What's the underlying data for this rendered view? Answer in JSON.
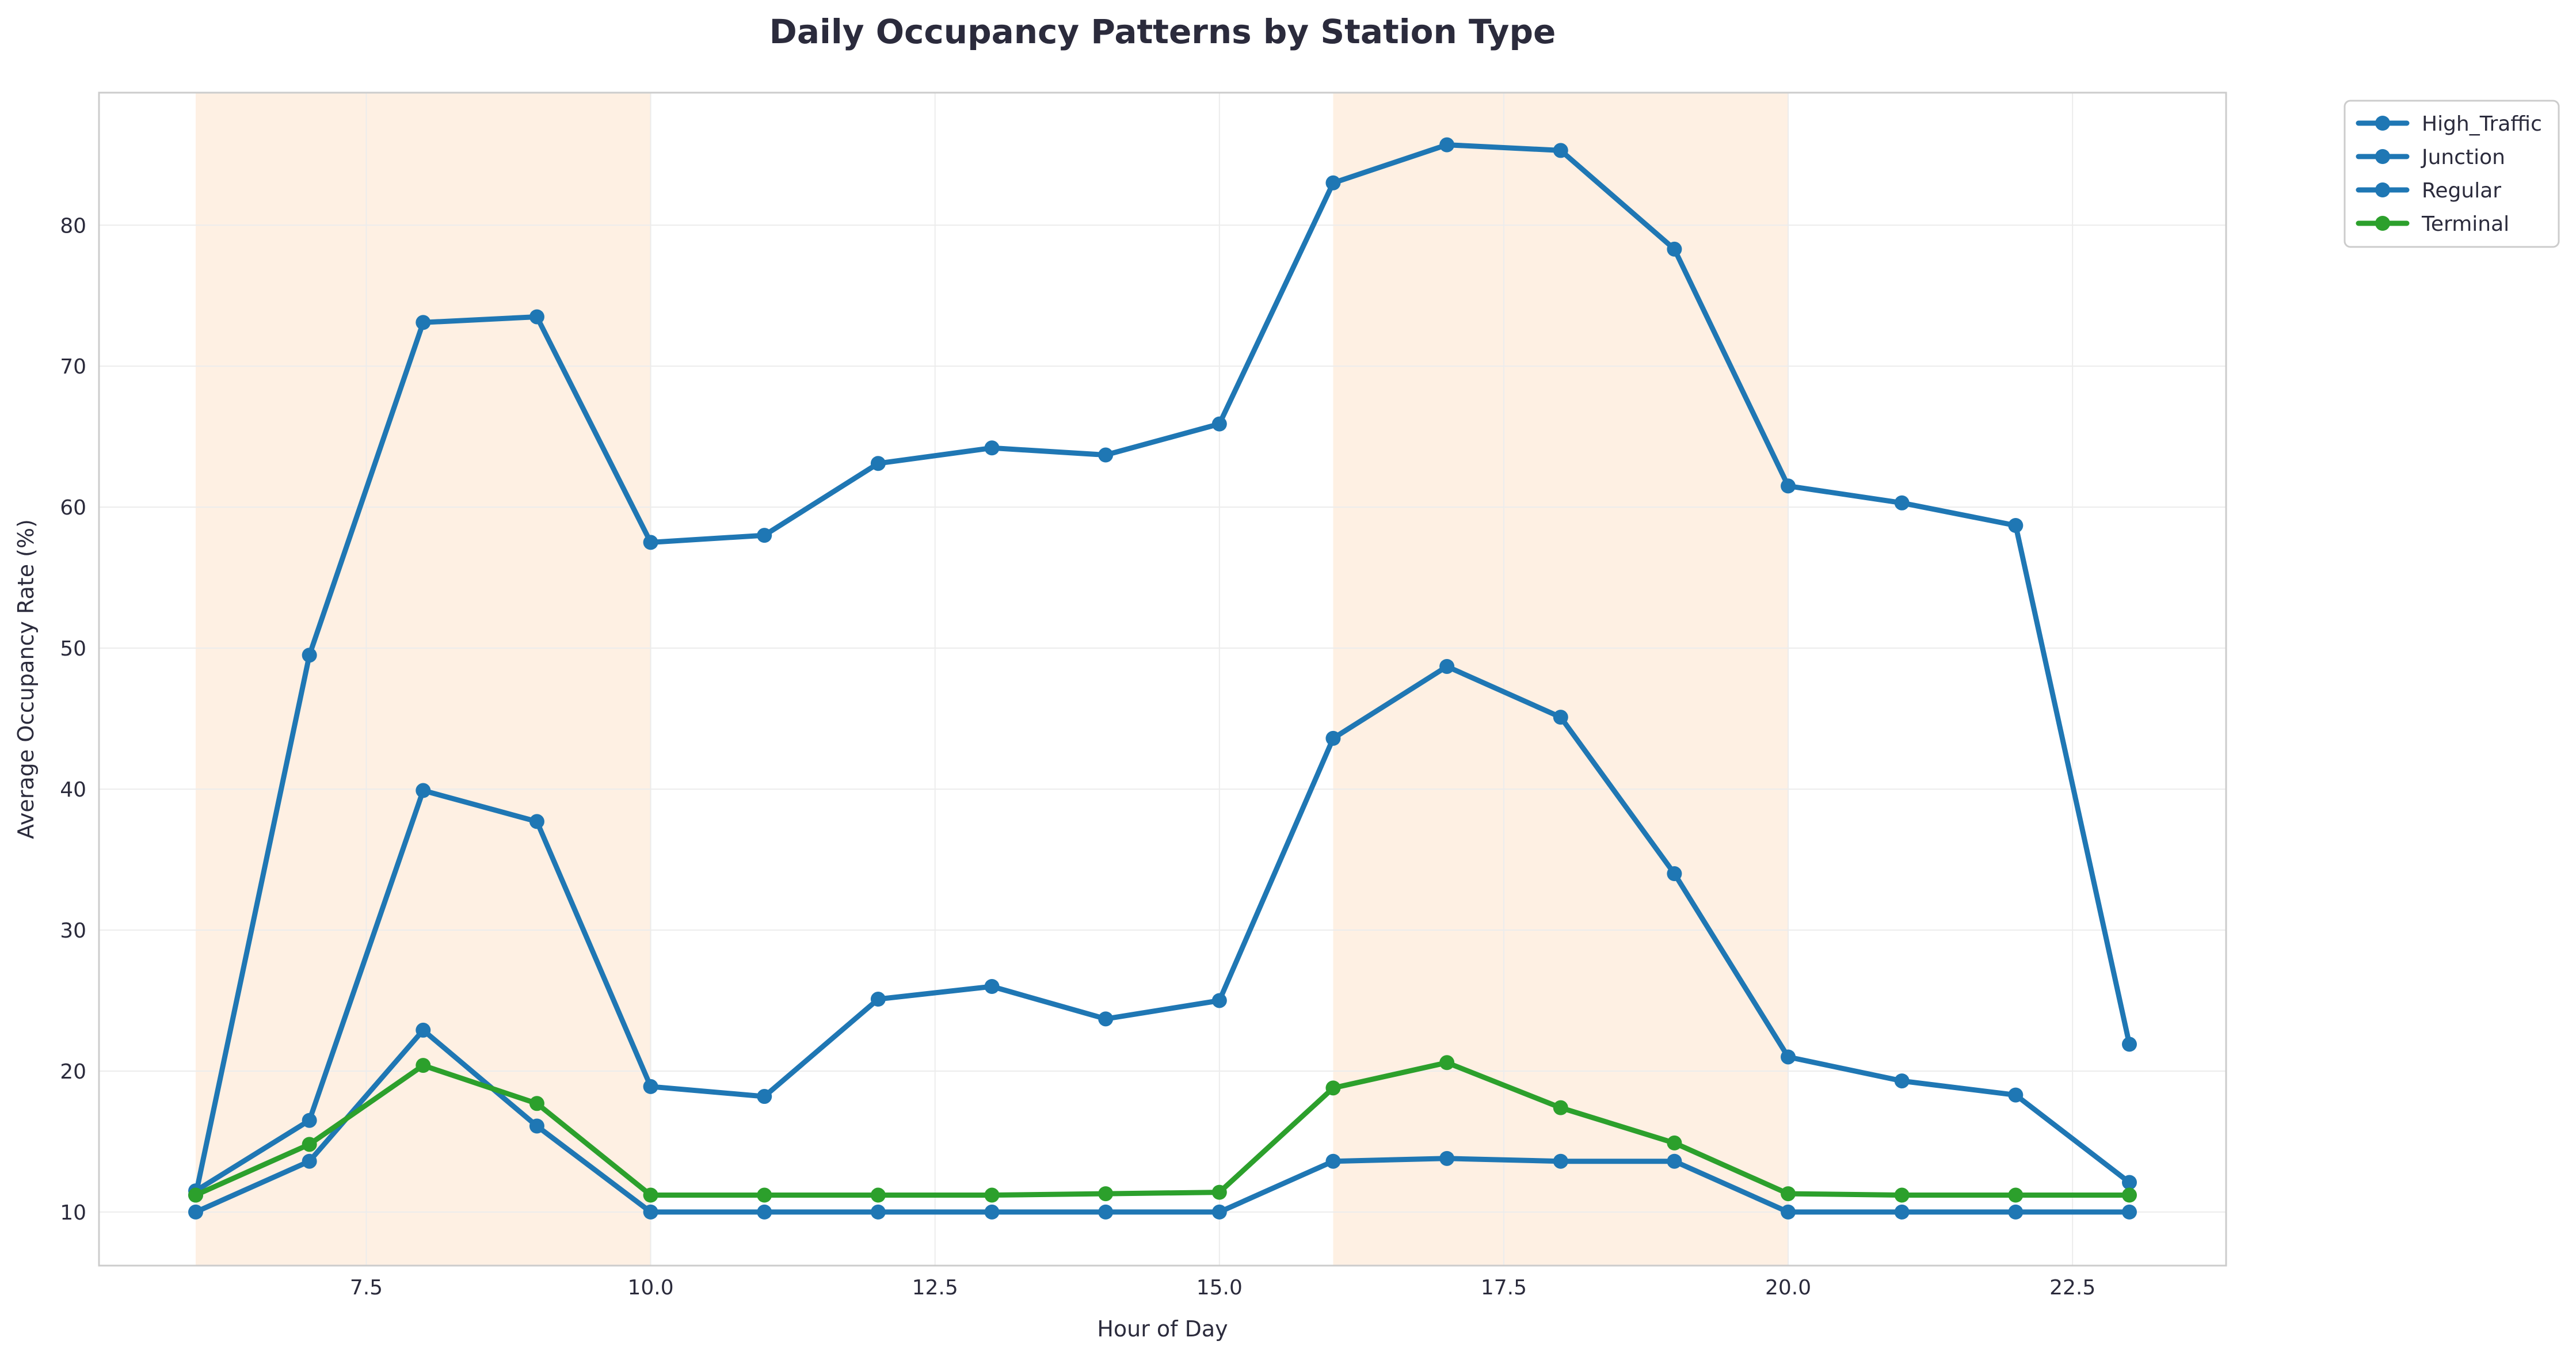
{
  "chart_data": {
    "type": "line",
    "title": "Daily Occupancy Patterns by Station Type",
    "xlabel": "Hour of Day",
    "ylabel": "Average Occupancy Rate (%)",
    "xlim": [
      5.15,
      23.85
    ],
    "ylim": [
      6.2,
      89.4
    ],
    "x_ticks": [
      7.5,
      10.0,
      12.5,
      15.0,
      17.5,
      20.0,
      22.5
    ],
    "x_tick_labels": [
      "7.5",
      "10.0",
      "12.5",
      "15.0",
      "17.5",
      "20.0",
      "22.5"
    ],
    "y_ticks": [
      10,
      20,
      30,
      40,
      50,
      60,
      70,
      80
    ],
    "y_tick_labels": [
      "10",
      "20",
      "30",
      "40",
      "50",
      "60",
      "70",
      "80"
    ],
    "grid": true,
    "legend_position": "outside-top-right",
    "shaded_ranges": [
      {
        "x0": 6,
        "x1": 10,
        "color": "#fdebd9"
      },
      {
        "x0": 16,
        "x1": 20,
        "color": "#fdebd9"
      }
    ],
    "x": [
      6,
      7,
      8,
      9,
      10,
      11,
      12,
      13,
      14,
      15,
      16,
      17,
      18,
      19,
      20,
      21,
      22,
      23
    ],
    "series": [
      {
        "name": "High_Traffic",
        "color": "#1f77b4",
        "values": [
          11.2,
          49.5,
          73.1,
          73.5,
          57.5,
          58.0,
          63.1,
          64.2,
          63.7,
          65.9,
          83.0,
          85.7,
          85.3,
          78.3,
          61.5,
          60.3,
          58.7,
          21.9
        ]
      },
      {
        "name": "Junction",
        "color": "#1f77b4",
        "values": [
          11.5,
          16.5,
          39.9,
          37.7,
          18.9,
          18.2,
          25.1,
          26.0,
          23.7,
          25.0,
          43.6,
          48.7,
          45.1,
          34.0,
          21.0,
          19.3,
          18.3,
          12.1
        ]
      },
      {
        "name": "Regular",
        "color": "#1f77b4",
        "values": [
          10.0,
          13.6,
          22.9,
          16.1,
          10.0,
          10.0,
          10.0,
          10.0,
          10.0,
          10.0,
          13.6,
          13.8,
          13.6,
          13.6,
          10.0,
          10.0,
          10.0,
          10.0
        ]
      },
      {
        "name": "Terminal",
        "color": "#2ca02c",
        "values": [
          11.2,
          14.8,
          20.4,
          17.7,
          11.2,
          11.2,
          11.2,
          11.2,
          11.3,
          11.4,
          18.8,
          20.6,
          17.4,
          14.9,
          11.3,
          11.2,
          11.2,
          11.2
        ]
      }
    ]
  }
}
